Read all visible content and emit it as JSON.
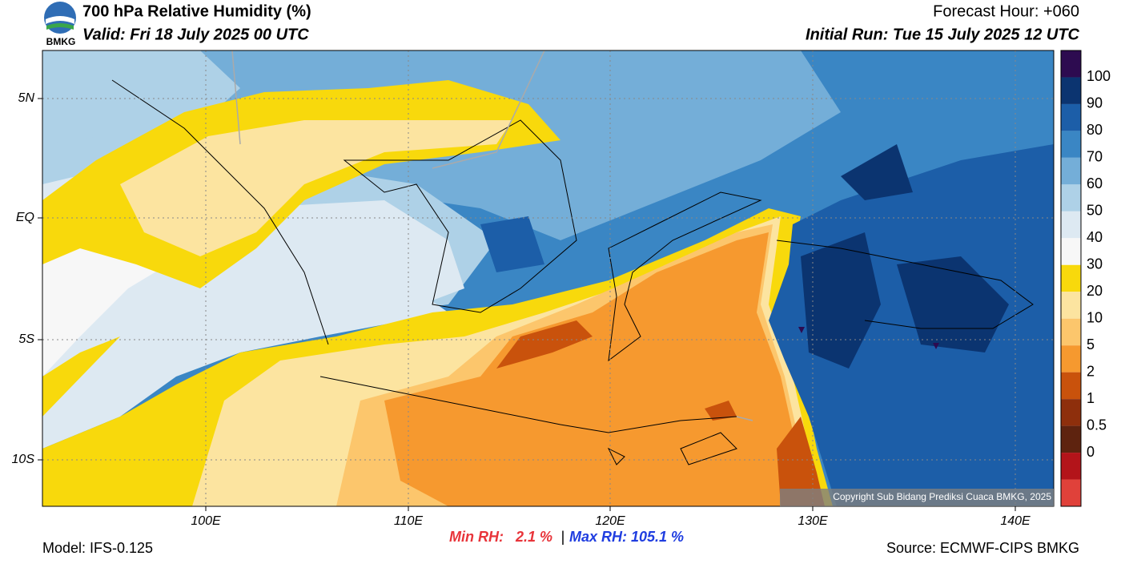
{
  "header": {
    "logo_text": "BMKG",
    "title": "700 hPa Relative Humidity (%)",
    "valid": "Valid: Fri 18 July 2025 00 UTC",
    "forecast_hour": "Forecast Hour: +060",
    "initial_run": "Initial Run: Tue 15 July 2025 12 UTC"
  },
  "map": {
    "lat_labels": [
      "5N",
      "EQ",
      "5S",
      "10S"
    ],
    "lon_labels": [
      "100E",
      "110E",
      "120E",
      "130E",
      "140E"
    ],
    "copyright": "Copyright Sub Bidang Prediksi Cuaca BMKG, 2025"
  },
  "colorbar": {
    "ticks": [
      100,
      90,
      80,
      70,
      60,
      50,
      40,
      30,
      20,
      10,
      5,
      2,
      1,
      0.5,
      0
    ],
    "colors": [
      "#2d0b50",
      "#0b3470",
      "#1c5ea8",
      "#3a86c4",
      "#74aed8",
      "#aed1e7",
      "#dde9f2",
      "#f7f7f7",
      "#f8d90c",
      "#fce4a0",
      "#fcc66c",
      "#f6992f",
      "#c9520c",
      "#8e2f0c",
      "#5e230f",
      "#b3141a",
      "#e0413a"
    ]
  },
  "footer": {
    "min_rh": "Min RH:   2.1 %",
    "separator": "|",
    "max_rh": "Max RH: 105.1 %",
    "model": "Model: IFS-0.125",
    "source": "Source: ECMWF-CIPS BMKG"
  }
}
